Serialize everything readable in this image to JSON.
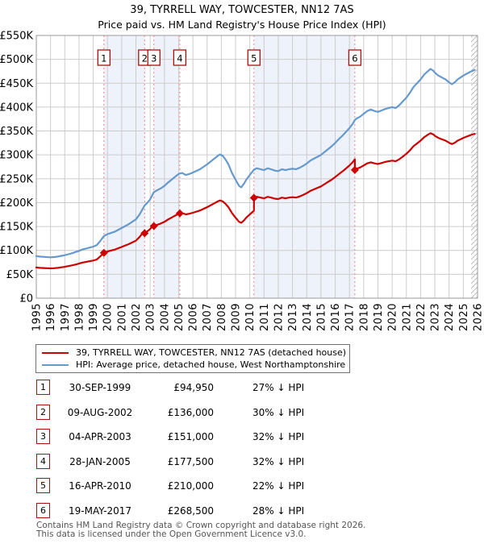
{
  "page": {
    "title": "39, TYRRELL WAY, TOWCESTER, NN12 7AS",
    "subtitle": "Price paid vs. HM Land Registry's House Price Index (HPI)"
  },
  "chart_data": {
    "type": "line",
    "title": "39, TYRRELL WAY, TOWCESTER, NN12 7AS",
    "subtitle": "Price paid vs. HM Land Registry's House Price Index (HPI)",
    "xlabel": "",
    "ylabel": "",
    "x_range": [
      1995,
      2026
    ],
    "y_range_gbp_k": [
      0,
      550
    ],
    "y_tick_step_k": 50,
    "grid": true,
    "legend_position": "below",
    "colors": {
      "property": "#cc0000",
      "hpi": "#6699cc",
      "band": "#eef2fa",
      "dashed": "#f28080",
      "grid": "#cccccc",
      "border": "#999999",
      "hatch": "#bbbbbb",
      "box_border": "#aa1111"
    },
    "series": [
      {
        "name": "39, TYRRELL WAY, TOWCESTER, NN12 7AS (detached house)",
        "color": "#cc0000",
        "points": [
          [
            1995,
            64.2
          ],
          [
            1995.25,
            63.5
          ],
          [
            1995.5,
            63.1
          ],
          [
            1995.75,
            62.8
          ],
          [
            1996,
            62.4
          ],
          [
            1996.25,
            62.8
          ],
          [
            1996.5,
            63.5
          ],
          [
            1996.75,
            64.6
          ],
          [
            1997,
            65.7
          ],
          [
            1997.25,
            67.2
          ],
          [
            1997.5,
            68.6
          ],
          [
            1997.75,
            70.4
          ],
          [
            1998,
            72.3
          ],
          [
            1998.25,
            74.5
          ],
          [
            1998.5,
            75.9
          ],
          [
            1998.75,
            77.4
          ],
          [
            1999,
            78.8
          ],
          [
            1999.25,
            81
          ],
          [
            1999.5,
            87.6
          ],
          [
            1999.75,
            94.95
          ],
          [
            2000,
            97.8
          ],
          [
            2000.5,
            101.5
          ],
          [
            2001,
            107.3
          ],
          [
            2001.5,
            113.2
          ],
          [
            2002,
            120.5
          ],
          [
            2002.25,
            127.8
          ],
          [
            2002.5,
            137.2
          ],
          [
            2002.61,
            141.8
          ],
          [
            2002.61,
            136
          ],
          [
            2002.75,
            138.6
          ],
          [
            2003,
            144.9
          ],
          [
            2003.26,
            155.4
          ],
          [
            2003.26,
            151
          ],
          [
            2003.5,
            153.7
          ],
          [
            2003.75,
            156.4
          ],
          [
            2004,
            159.8
          ],
          [
            2004.25,
            164.6
          ],
          [
            2004.5,
            168.6
          ],
          [
            2004.75,
            172.7
          ],
          [
            2005,
            176.8
          ],
          [
            2005.08,
            177.5
          ],
          [
            2005.25,
            178.2
          ],
          [
            2005.5,
            175.4
          ],
          [
            2005.75,
            176.8
          ],
          [
            2006,
            178.8
          ],
          [
            2006.5,
            183.6
          ],
          [
            2007,
            190.4
          ],
          [
            2007.5,
            198.6
          ],
          [
            2007.75,
            202.6
          ],
          [
            2007.9,
            204.7
          ],
          [
            2008.1,
            202.6
          ],
          [
            2008.3,
            197.2
          ],
          [
            2008.5,
            190.4
          ],
          [
            2008.75,
            178.2
          ],
          [
            2009,
            168.6
          ],
          [
            2009.25,
            159.8
          ],
          [
            2009.4,
            157.8
          ],
          [
            2009.6,
            163.2
          ],
          [
            2009.75,
            168.6
          ],
          [
            2010,
            175.4
          ],
          [
            2010.29,
            183.1
          ],
          [
            2010.29,
            210
          ],
          [
            2010.5,
            212.2
          ],
          [
            2010.75,
            210.6
          ],
          [
            2011,
            209
          ],
          [
            2011.25,
            212.2
          ],
          [
            2011.5,
            210.6
          ],
          [
            2011.75,
            208.3
          ],
          [
            2012,
            207.5
          ],
          [
            2012.25,
            210.6
          ],
          [
            2012.5,
            209
          ],
          [
            2012.75,
            210.6
          ],
          [
            2013,
            211.4
          ],
          [
            2013.25,
            210.6
          ],
          [
            2013.5,
            212.9
          ],
          [
            2013.75,
            216.1
          ],
          [
            2014,
            220
          ],
          [
            2014.25,
            224.6
          ],
          [
            2014.5,
            227.8
          ],
          [
            2014.75,
            230.9
          ],
          [
            2015,
            234
          ],
          [
            2015.25,
            238.7
          ],
          [
            2015.5,
            243.4
          ],
          [
            2015.75,
            248
          ],
          [
            2016,
            253.5
          ],
          [
            2016.25,
            259.7
          ],
          [
            2016.5,
            265.2
          ],
          [
            2016.75,
            271.4
          ],
          [
            2017,
            277.7
          ],
          [
            2017.25,
            285.5
          ],
          [
            2017.38,
            290.9
          ],
          [
            2017.38,
            268.5
          ],
          [
            2017.5,
            270.7
          ],
          [
            2017.75,
            273.6
          ],
          [
            2018,
            277.9
          ],
          [
            2018.25,
            282.2
          ],
          [
            2018.5,
            284.4
          ],
          [
            2018.75,
            282.2
          ],
          [
            2019,
            280.8
          ],
          [
            2019.25,
            283
          ],
          [
            2019.5,
            285.1
          ],
          [
            2019.75,
            286.6
          ],
          [
            2020,
            288
          ],
          [
            2020.25,
            286.6
          ],
          [
            2020.5,
            290.9
          ],
          [
            2020.75,
            296.6
          ],
          [
            2021,
            302.4
          ],
          [
            2021.25,
            309.6
          ],
          [
            2021.5,
            318.2
          ],
          [
            2021.75,
            324
          ],
          [
            2022,
            329.8
          ],
          [
            2022.25,
            337
          ],
          [
            2022.5,
            342
          ],
          [
            2022.7,
            345.6
          ],
          [
            2022.9,
            342.7
          ],
          [
            2023,
            339.8
          ],
          [
            2023.25,
            335.5
          ],
          [
            2023.5,
            332.6
          ],
          [
            2023.75,
            329.8
          ],
          [
            2024,
            325.4
          ],
          [
            2024.2,
            322.6
          ],
          [
            2024.4,
            325.4
          ],
          [
            2024.6,
            329.8
          ],
          [
            2024.8,
            332.6
          ],
          [
            2025,
            335.5
          ],
          [
            2025.25,
            338.4
          ],
          [
            2025.5,
            341.3
          ],
          [
            2025.8,
            344.2
          ]
        ]
      },
      {
        "name": "HPI: Average price, detached house, West Northamptonshire",
        "color": "#6699cc",
        "points": [
          [
            1995,
            88
          ],
          [
            1995.25,
            87
          ],
          [
            1995.5,
            86.5
          ],
          [
            1995.75,
            86
          ],
          [
            1996,
            85.5
          ],
          [
            1996.25,
            86
          ],
          [
            1996.5,
            87
          ],
          [
            1996.75,
            88.5
          ],
          [
            1997,
            90
          ],
          [
            1997.25,
            92
          ],
          [
            1997.5,
            94
          ],
          [
            1997.75,
            96.5
          ],
          [
            1998,
            99
          ],
          [
            1998.25,
            102
          ],
          [
            1998.5,
            104
          ],
          [
            1998.75,
            106
          ],
          [
            1999,
            108
          ],
          [
            1999.25,
            111
          ],
          [
            1999.5,
            120
          ],
          [
            1999.75,
            130
          ],
          [
            2000,
            134
          ],
          [
            2000.5,
            139
          ],
          [
            2001,
            147
          ],
          [
            2001.5,
            155
          ],
          [
            2002,
            165
          ],
          [
            2002.25,
            175
          ],
          [
            2002.5,
            188
          ],
          [
            2002.61,
            194
          ],
          [
            2002.75,
            198
          ],
          [
            2003,
            207
          ],
          [
            2003.26,
            222
          ],
          [
            2003.5,
            226
          ],
          [
            2003.75,
            230
          ],
          [
            2004,
            235
          ],
          [
            2004.25,
            242
          ],
          [
            2004.5,
            248
          ],
          [
            2004.75,
            254
          ],
          [
            2005,
            260
          ],
          [
            2005.08,
            261
          ],
          [
            2005.25,
            262
          ],
          [
            2005.5,
            258
          ],
          [
            2005.75,
            260
          ],
          [
            2006,
            263
          ],
          [
            2006.5,
            270
          ],
          [
            2007,
            280
          ],
          [
            2007.5,
            292
          ],
          [
            2007.75,
            298
          ],
          [
            2007.9,
            301
          ],
          [
            2008.1,
            298
          ],
          [
            2008.3,
            290
          ],
          [
            2008.5,
            280
          ],
          [
            2008.75,
            262
          ],
          [
            2009,
            248
          ],
          [
            2009.25,
            235
          ],
          [
            2009.4,
            232
          ],
          [
            2009.6,
            240
          ],
          [
            2009.75,
            248
          ],
          [
            2010,
            258
          ],
          [
            2010.29,
            269
          ],
          [
            2010.5,
            272
          ],
          [
            2010.75,
            270
          ],
          [
            2011,
            268
          ],
          [
            2011.25,
            272
          ],
          [
            2011.5,
            270
          ],
          [
            2011.75,
            267
          ],
          [
            2012,
            266
          ],
          [
            2012.25,
            270
          ],
          [
            2012.5,
            268
          ],
          [
            2012.75,
            270
          ],
          [
            2013,
            271
          ],
          [
            2013.25,
            270
          ],
          [
            2013.5,
            273
          ],
          [
            2013.75,
            277
          ],
          [
            2014,
            282
          ],
          [
            2014.25,
            288
          ],
          [
            2014.5,
            292
          ],
          [
            2014.75,
            296
          ],
          [
            2015,
            300
          ],
          [
            2015.25,
            306
          ],
          [
            2015.5,
            312
          ],
          [
            2015.75,
            318
          ],
          [
            2016,
            325
          ],
          [
            2016.25,
            333
          ],
          [
            2016.5,
            340
          ],
          [
            2016.75,
            348
          ],
          [
            2017,
            356
          ],
          [
            2017.25,
            366
          ],
          [
            2017.38,
            373
          ],
          [
            2017.5,
            376
          ],
          [
            2017.75,
            380
          ],
          [
            2018,
            386
          ],
          [
            2018.25,
            392
          ],
          [
            2018.5,
            395
          ],
          [
            2018.75,
            392
          ],
          [
            2019,
            390
          ],
          [
            2019.25,
            393
          ],
          [
            2019.5,
            396
          ],
          [
            2019.75,
            398
          ],
          [
            2020,
            400
          ],
          [
            2020.25,
            398
          ],
          [
            2020.5,
            404
          ],
          [
            2020.75,
            412
          ],
          [
            2021,
            420
          ],
          [
            2021.25,
            430
          ],
          [
            2021.5,
            442
          ],
          [
            2021.75,
            450
          ],
          [
            2022,
            458
          ],
          [
            2022.25,
            468
          ],
          [
            2022.5,
            475
          ],
          [
            2022.7,
            480
          ],
          [
            2022.9,
            476
          ],
          [
            2023,
            472
          ],
          [
            2023.25,
            466
          ],
          [
            2023.5,
            462
          ],
          [
            2023.75,
            458
          ],
          [
            2024,
            452
          ],
          [
            2024.2,
            448
          ],
          [
            2024.4,
            452
          ],
          [
            2024.6,
            458
          ],
          [
            2024.8,
            462
          ],
          [
            2025,
            466
          ],
          [
            2025.25,
            470
          ],
          [
            2025.5,
            474
          ],
          [
            2025.8,
            478
          ]
        ]
      }
    ],
    "sales": [
      {
        "label": "1",
        "year": 1999.75,
        "price_k": 94.95
      },
      {
        "label": "2",
        "year": 2002.61,
        "price_k": 136
      },
      {
        "label": "3",
        "year": 2003.26,
        "price_k": 151
      },
      {
        "label": "4",
        "year": 2005.08,
        "price_k": 177.5
      },
      {
        "label": "5",
        "year": 2010.29,
        "price_k": 210
      },
      {
        "label": "6",
        "year": 2017.38,
        "price_k": 268.5
      }
    ],
    "shaded_bands_years": [
      [
        1999.75,
        2002.61
      ],
      [
        2003.26,
        2005.08
      ],
      [
        2010.29,
        2017.38
      ]
    ],
    "future_hatch_from_year": 2025.55
  },
  "table": {
    "rows": [
      {
        "n": "1",
        "date": "30-SEP-1999",
        "price": "£94,950",
        "pct": "27% ↓ HPI"
      },
      {
        "n": "2",
        "date": "09-AUG-2002",
        "price": "£136,000",
        "pct": "30% ↓ HPI"
      },
      {
        "n": "3",
        "date": "04-APR-2003",
        "price": "£151,000",
        "pct": "32% ↓ HPI"
      },
      {
        "n": "4",
        "date": "28-JAN-2005",
        "price": "£177,500",
        "pct": "32% ↓ HPI"
      },
      {
        "n": "5",
        "date": "16-APR-2010",
        "price": "£210,000",
        "pct": "22% ↓ HPI"
      },
      {
        "n": "6",
        "date": "19-MAY-2017",
        "price": "£268,500",
        "pct": "28% ↓ HPI"
      }
    ]
  },
  "footer": {
    "line1": "Contains HM Land Registry data © Crown copyright and database right 2026.",
    "line2": "This data is licensed under the Open Government Licence v3.0."
  }
}
